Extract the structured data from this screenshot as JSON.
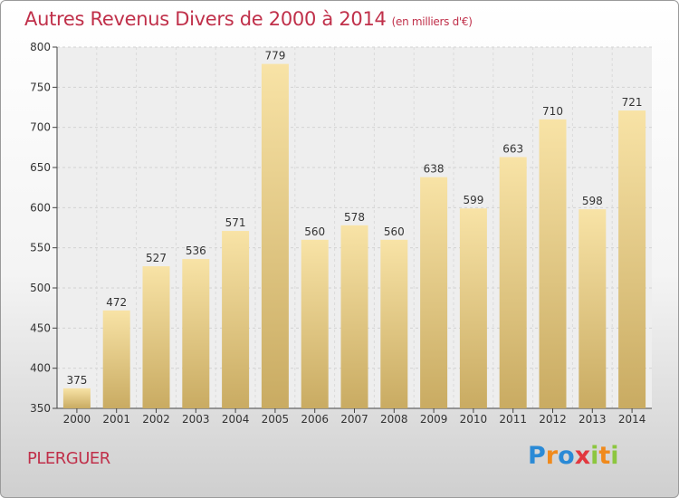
{
  "header": {
    "title": "Autres Revenus Divers de 2000 à 2014",
    "subtitle": "(en milliers d'€)"
  },
  "footer": {
    "town": "PLERGUER",
    "logo_text": "Proxiti"
  },
  "colors": {
    "title": "#c0304a",
    "bar_top": "#f8e3a6",
    "bar_bottom": "#c9ab62"
  },
  "chart_data": {
    "type": "bar",
    "title": "Autres Revenus Divers de 2000 à 2014",
    "subtitle": "(en milliers d'€)",
    "categories": [
      "2000",
      "2001",
      "2002",
      "2003",
      "2004",
      "2005",
      "2006",
      "2007",
      "2008",
      "2009",
      "2010",
      "2011",
      "2012",
      "2013",
      "2014"
    ],
    "values": [
      375,
      472,
      527,
      536,
      571,
      779,
      560,
      578,
      560,
      638,
      599,
      663,
      710,
      598,
      721
    ],
    "ylim": [
      350,
      800
    ],
    "yticks": [
      350,
      400,
      450,
      500,
      550,
      600,
      650,
      700,
      750,
      800
    ],
    "grid": true,
    "legend": "none",
    "xlabel": "",
    "ylabel": ""
  }
}
